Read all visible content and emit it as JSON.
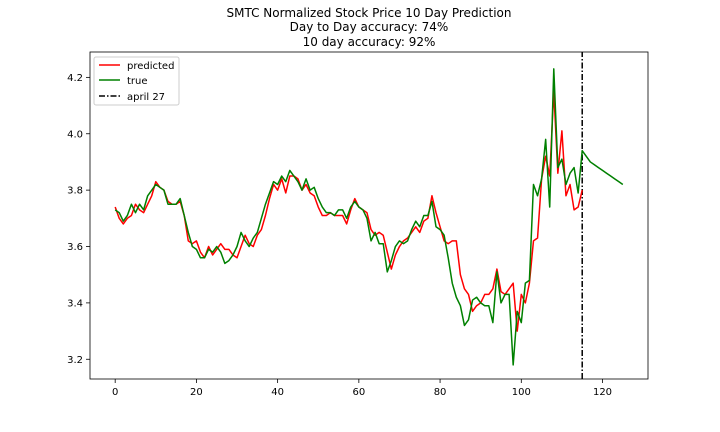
{
  "chart_data": {
    "type": "line",
    "title": "SMTC Normalized Stock Price 10 Day Prediction",
    "subtitle_lines": [
      "Day to Day accuracy: 74%",
      "10 day accuracy: 92%"
    ],
    "xlabel": "",
    "ylabel": "",
    "xlim": [
      -6.2,
      131.2
    ],
    "ylim": [
      3.13,
      4.29
    ],
    "x_ticks": [
      0,
      20,
      40,
      60,
      80,
      100,
      120
    ],
    "y_ticks": [
      3.2,
      3.4,
      3.6,
      3.8,
      4.0,
      4.2
    ],
    "x_tick_labels": [
      "0",
      "20",
      "40",
      "60",
      "80",
      "100",
      "120"
    ],
    "y_tick_labels": [
      "3.2",
      "3.4",
      "3.6",
      "3.8",
      "4.0",
      "4.2"
    ],
    "grid": false,
    "legend_position": "top-left",
    "series": [
      {
        "name": "predicted",
        "color": "#ff0000",
        "style": "solid",
        "x": [
          0,
          1,
          2,
          3,
          4,
          5,
          6,
          7,
          8,
          9,
          10,
          11,
          12,
          13,
          14,
          15,
          16,
          17,
          18,
          19,
          20,
          21,
          22,
          23,
          24,
          25,
          26,
          27,
          28,
          29,
          30,
          31,
          32,
          33,
          34,
          35,
          36,
          37,
          38,
          39,
          40,
          41,
          42,
          43,
          44,
          45,
          46,
          47,
          48,
          49,
          50,
          51,
          52,
          53,
          54,
          55,
          56,
          57,
          58,
          59,
          60,
          61,
          62,
          63,
          64,
          65,
          66,
          67,
          68,
          69,
          70,
          71,
          72,
          73,
          74,
          75,
          76,
          77,
          78,
          79,
          80,
          81,
          82,
          83,
          84,
          85,
          86,
          87,
          88,
          89,
          90,
          91,
          92,
          93,
          94,
          95,
          96,
          97,
          98,
          99,
          100,
          101,
          102,
          103,
          104,
          105,
          106,
          107,
          108,
          109,
          110,
          111,
          112,
          113,
          114,
          115
        ],
        "values": [
          3.74,
          3.7,
          3.68,
          3.7,
          3.71,
          3.75,
          3.73,
          3.72,
          3.75,
          3.78,
          3.83,
          3.81,
          3.8,
          3.76,
          3.75,
          3.75,
          3.76,
          3.71,
          3.62,
          3.61,
          3.62,
          3.58,
          3.56,
          3.6,
          3.57,
          3.59,
          3.61,
          3.59,
          3.59,
          3.57,
          3.56,
          3.6,
          3.64,
          3.61,
          3.6,
          3.64,
          3.66,
          3.71,
          3.77,
          3.82,
          3.8,
          3.84,
          3.79,
          3.85,
          3.85,
          3.84,
          3.8,
          3.82,
          3.79,
          3.78,
          3.74,
          3.71,
          3.71,
          3.72,
          3.71,
          3.71,
          3.71,
          3.68,
          3.73,
          3.77,
          3.74,
          3.73,
          3.72,
          3.66,
          3.64,
          3.65,
          3.64,
          3.58,
          3.52,
          3.57,
          3.6,
          3.62,
          3.63,
          3.65,
          3.67,
          3.65,
          3.69,
          3.7,
          3.78,
          3.72,
          3.67,
          3.62,
          3.61,
          3.62,
          3.62,
          3.5,
          3.45,
          3.43,
          3.37,
          3.39,
          3.4,
          3.43,
          3.43,
          3.45,
          3.52,
          3.44,
          3.43,
          3.45,
          3.47,
          3.3,
          3.43,
          3.4,
          3.47,
          3.62,
          3.63,
          3.84,
          3.92,
          3.85,
          4.15,
          3.86,
          4.01,
          3.78,
          3.82,
          3.73,
          3.74,
          3.8
        ]
      },
      {
        "name": "true",
        "color": "#008000",
        "style": "solid",
        "x": [
          0,
          1,
          2,
          3,
          4,
          5,
          6,
          7,
          8,
          9,
          10,
          11,
          12,
          13,
          14,
          15,
          16,
          17,
          18,
          19,
          20,
          21,
          22,
          23,
          24,
          25,
          26,
          27,
          28,
          29,
          30,
          31,
          32,
          33,
          34,
          35,
          36,
          37,
          38,
          39,
          40,
          41,
          42,
          43,
          44,
          45,
          46,
          47,
          48,
          49,
          50,
          51,
          52,
          53,
          54,
          55,
          56,
          57,
          58,
          59,
          60,
          61,
          62,
          63,
          64,
          65,
          66,
          67,
          68,
          69,
          70,
          71,
          72,
          73,
          74,
          75,
          76,
          77,
          78,
          79,
          80,
          81,
          82,
          83,
          84,
          85,
          86,
          87,
          88,
          89,
          90,
          91,
          92,
          93,
          94,
          95,
          96,
          97,
          98,
          99,
          100,
          101,
          102,
          103,
          104,
          105,
          106,
          107,
          108,
          109,
          110,
          111,
          112,
          113,
          114,
          115,
          116,
          117,
          118,
          119,
          120,
          121,
          122,
          123,
          124,
          125
        ],
        "values": [
          3.73,
          3.72,
          3.69,
          3.71,
          3.75,
          3.72,
          3.75,
          3.73,
          3.78,
          3.8,
          3.82,
          3.81,
          3.8,
          3.75,
          3.75,
          3.75,
          3.77,
          3.71,
          3.65,
          3.6,
          3.59,
          3.56,
          3.56,
          3.59,
          3.58,
          3.6,
          3.58,
          3.54,
          3.55,
          3.57,
          3.6,
          3.65,
          3.62,
          3.6,
          3.63,
          3.65,
          3.7,
          3.75,
          3.79,
          3.83,
          3.82,
          3.85,
          3.83,
          3.87,
          3.85,
          3.83,
          3.8,
          3.84,
          3.8,
          3.81,
          3.77,
          3.74,
          3.72,
          3.72,
          3.71,
          3.73,
          3.73,
          3.7,
          3.74,
          3.76,
          3.74,
          3.73,
          3.7,
          3.62,
          3.65,
          3.61,
          3.61,
          3.51,
          3.55,
          3.6,
          3.62,
          3.61,
          3.62,
          3.66,
          3.69,
          3.67,
          3.71,
          3.71,
          3.76,
          3.67,
          3.66,
          3.64,
          3.56,
          3.47,
          3.42,
          3.39,
          3.32,
          3.34,
          3.41,
          3.42,
          3.4,
          3.39,
          3.39,
          3.33,
          3.51,
          3.4,
          3.43,
          3.43,
          3.18,
          3.37,
          3.33,
          3.47,
          3.48,
          3.82,
          3.78,
          3.84,
          3.98,
          3.74,
          4.23,
          3.88,
          3.91,
          3.82,
          3.86,
          3.88,
          3.79,
          3.94,
          3.92,
          3.9,
          3.89,
          3.88,
          3.87,
          3.86,
          3.85,
          3.84,
          3.83,
          3.82
        ]
      },
      {
        "name": "april 27",
        "color": "#000000",
        "style": "dashdot",
        "x": [
          115,
          115
        ],
        "values": [
          3.13,
          4.29
        ]
      }
    ]
  }
}
